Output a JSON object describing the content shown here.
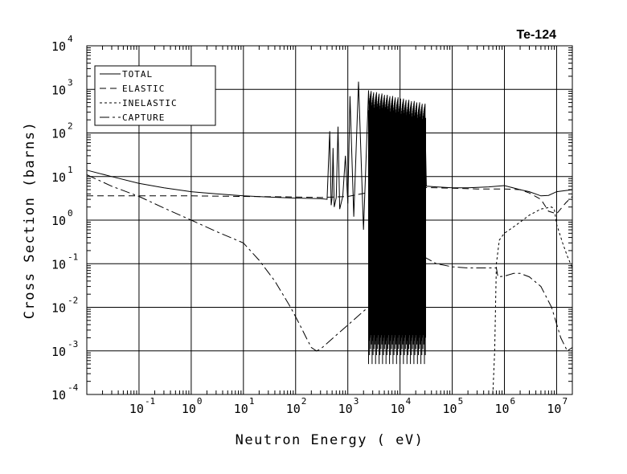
{
  "chart_data": {
    "type": "line",
    "title": "Te-124",
    "xlabel": "Neutron Energy ( eV)",
    "ylabel": "Cross Section (barns)",
    "x_scale": "log",
    "y_scale": "log",
    "xlim": [
      0.01,
      20000000
    ],
    "ylim": [
      0.0001,
      10000
    ],
    "grid": true,
    "legend_position": "top-left",
    "x_ticks": [
      {
        "base": "10",
        "exp": "-1"
      },
      {
        "base": "10",
        "exp": "0"
      },
      {
        "base": "10",
        "exp": "1"
      },
      {
        "base": "10",
        "exp": "2"
      },
      {
        "base": "10",
        "exp": "3"
      },
      {
        "base": "10",
        "exp": "4"
      },
      {
        "base": "10",
        "exp": "5"
      },
      {
        "base": "10",
        "exp": "6"
      },
      {
        "base": "10",
        "exp": "7"
      }
    ],
    "y_ticks": [
      {
        "base": "10",
        "exp": "4"
      },
      {
        "base": "10",
        "exp": "3"
      },
      {
        "base": "10",
        "exp": "2"
      },
      {
        "base": "10",
        "exp": "1"
      },
      {
        "base": "10",
        "exp": "0"
      },
      {
        "base": "10",
        "exp": "-1"
      },
      {
        "base": "10",
        "exp": "-2"
      },
      {
        "base": "10",
        "exp": "-3"
      },
      {
        "base": "10",
        "exp": "-4"
      }
    ],
    "series": [
      {
        "name": "TOTAL",
        "dash": "",
        "x": [
          0.01,
          0.03,
          0.1,
          0.3,
          1,
          3,
          10,
          30,
          100,
          300,
          400,
          450,
          480,
          500,
          520,
          550,
          600,
          650,
          700,
          800,
          900,
          1000,
          1100,
          1300,
          1600,
          2000,
          2500,
          3000,
          3500,
          4000,
          5000,
          6000,
          8000,
          10000,
          13000,
          16000,
          20000,
          25000,
          30000,
          32000,
          50000,
          100000,
          200000,
          500000,
          1000000,
          2000000,
          3000000,
          5000000,
          7000000,
          10000000,
          20000000
        ],
        "y": [
          14,
          10,
          7,
          5.5,
          4.5,
          4,
          3.6,
          3.4,
          3.2,
          3.1,
          3.0,
          110,
          2.2,
          3.2,
          45,
          2.0,
          3.3,
          140,
          1.8,
          3.5,
          30,
          2.4,
          700,
          1.2,
          1500,
          0.6,
          950,
          0.4,
          700,
          0.5,
          550,
          0.3,
          450,
          0.3,
          380,
          0.3,
          320,
          0.3,
          250,
          6,
          5.8,
          5.5,
          5.5,
          5.8,
          6.2,
          5.0,
          4.5,
          3.6,
          3.7,
          4.5,
          5
        ]
      },
      {
        "name": "ELASTIC",
        "dash": "8 5",
        "x": [
          0.01,
          0.1,
          1,
          10,
          100,
          300,
          1000,
          3000,
          10000,
          30000,
          100000,
          300000,
          1000000,
          2000000,
          3000000,
          5000000,
          7000000,
          10000000,
          15000000,
          20000000
        ],
        "y": [
          3.6,
          3.6,
          3.6,
          3.5,
          3.4,
          3.3,
          3.5,
          4.5,
          5,
          5.6,
          5.4,
          5.2,
          5.2,
          5.0,
          4.2,
          3.0,
          1.6,
          1.4,
          2.5,
          3.5
        ]
      },
      {
        "name": "INELASTIC",
        "dash": "3 3",
        "x": [
          600000,
          650000,
          700000,
          800000,
          1000000,
          1500000,
          2000000,
          3000000,
          5000000,
          8000000,
          9000000,
          10000000,
          13000000,
          16000000,
          20000000
        ],
        "y": [
          0.0001,
          0.001,
          0.1,
          0.35,
          0.5,
          0.7,
          0.9,
          1.3,
          1.8,
          2.0,
          1.8,
          0.8,
          0.3,
          0.15,
          0.08
        ]
      },
      {
        "name": "CAPTURE",
        "dash": "12 4 3 4",
        "x": [
          0.01,
          0.03,
          0.1,
          0.3,
          1,
          3,
          10,
          20,
          40,
          80,
          120,
          160,
          200,
          250,
          300,
          30000,
          50000,
          100000,
          200000,
          400000,
          700000,
          750000,
          1000000,
          1500000,
          2000000,
          3000000,
          5000000,
          8000000,
          12000000,
          16000000,
          20000000
        ],
        "y": [
          11,
          6,
          3.5,
          1.9,
          1.0,
          0.55,
          0.3,
          0.12,
          0.04,
          0.01,
          0.004,
          0.002,
          0.0012,
          0.001,
          0.0011,
          0.14,
          0.1,
          0.085,
          0.08,
          0.08,
          0.08,
          0.05,
          0.052,
          0.06,
          0.06,
          0.05,
          0.03,
          0.01,
          0.002,
          0.001,
          0.0012
        ]
      }
    ]
  }
}
